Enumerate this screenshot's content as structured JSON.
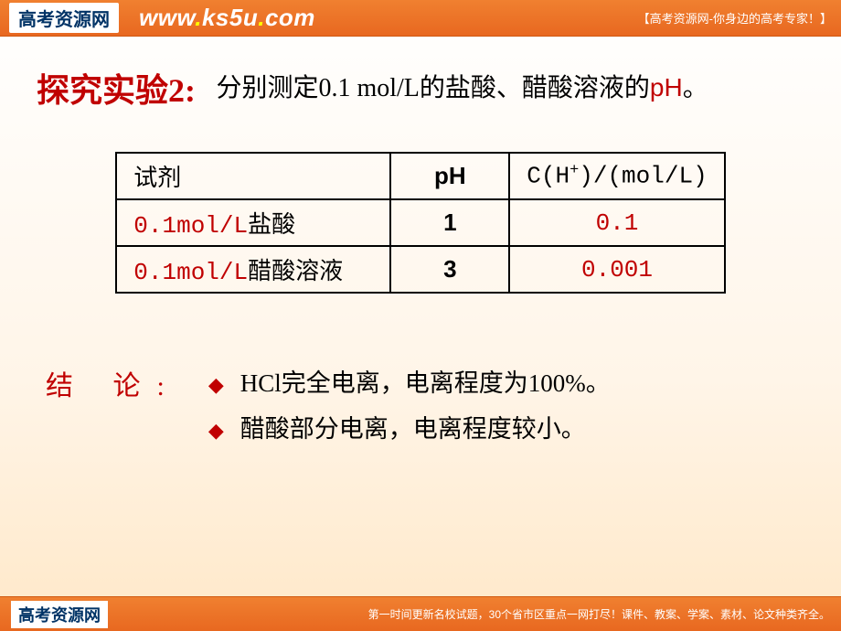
{
  "banner": {
    "logo_text": "高考资源网",
    "url_pre": "www",
    "url_mid": "ks5u",
    "url_suf": "com",
    "right_text": "【高考资源网-你身边的高考专家！】"
  },
  "section": {
    "title": "探究实验2:",
    "instruction_prefix": "分别测定0.1 mol/L的盐酸、醋酸溶液的",
    "instruction_ph": "pH",
    "instruction_suffix": "。"
  },
  "table": {
    "headers": {
      "reagent": "试剂",
      "ph": "pH",
      "conc_prefix": "C(H",
      "conc_sup": "+",
      "conc_suffix": ")/(mol/L)"
    },
    "rows": [
      {
        "reagent_red": "0.1mol/L",
        "reagent_black": "盐酸",
        "ph": "1",
        "conc": "0.1"
      },
      {
        "reagent_red": "0.1mol/L",
        "reagent_black": "醋酸溶液",
        "ph": "3",
        "conc": "0.001"
      }
    ]
  },
  "conclusion": {
    "label": "结 论:",
    "items": [
      "HCl完全电离，电离程度为100%。",
      "醋酸部分电离，电离程度较小。"
    ]
  },
  "footer": {
    "logo_text": "高考资源网",
    "right_text": "第一时间更新名校试题，30个省市区重点一网打尽！课件、教案、学案、素材、论文种类齐全。"
  },
  "styling": {
    "accent_color": "#c00000",
    "banner_bg": "#e86820",
    "text_color": "#000000",
    "page_bg_gradient": [
      "#ffffff",
      "#fff5e8",
      "#ffe8c8"
    ],
    "title_fontsize": 36,
    "body_fontsize": 28,
    "table_fontsize": 26,
    "conclusion_fontsize": 27,
    "bullet_char": "◆",
    "table_border_color": "#000000",
    "table_border_width": 2
  }
}
